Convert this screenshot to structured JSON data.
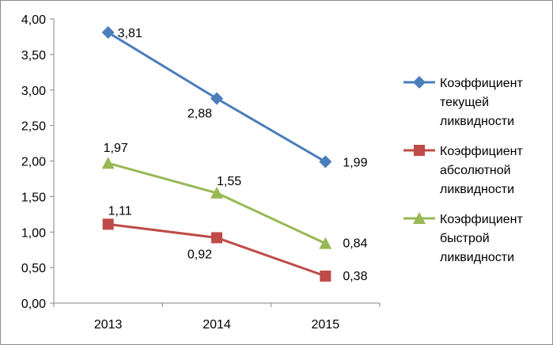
{
  "chart_data": {
    "type": "line",
    "categories": [
      "2013",
      "2014",
      "2015"
    ],
    "ylim": [
      0,
      4
    ],
    "ytick_values": [
      0,
      0.5,
      1,
      1.5,
      2,
      2.5,
      3,
      3.5,
      4
    ],
    "ytick_labels": [
      "0,00",
      "0,50",
      "1,00",
      "1,50",
      "2,00",
      "2,50",
      "3,00",
      "3,50",
      "4,00"
    ],
    "grid": false,
    "legend_position": "right",
    "series": [
      {
        "name": "Коэффициент текущей ликвидности",
        "name_lines": [
          "Коэффициент",
          "текущей",
          "ликвидности"
        ],
        "values": [
          3.81,
          2.88,
          1.99
        ],
        "labels": [
          "3,81",
          "2,88",
          "1,99"
        ],
        "color": "#4a7ebb",
        "marker": "diamond"
      },
      {
        "name": "Коэффициент абсолютной ликвидности",
        "name_lines": [
          "Коэффициент",
          "абсолютной",
          "ликвидности"
        ],
        "values": [
          1.11,
          0.92,
          0.38
        ],
        "labels": [
          "1,11",
          "0,92",
          "0,38"
        ],
        "color": "#be4b48",
        "marker": "square"
      },
      {
        "name": "Коэффициент быстрой ликвидности",
        "name_lines": [
          "Коэффициент",
          "быстрой",
          "ликвидности"
        ],
        "values": [
          1.97,
          1.55,
          0.84
        ],
        "labels": [
          "1,97",
          "1,55",
          "0,84"
        ],
        "color": "#98b954",
        "marker": "triangle"
      }
    ]
  }
}
